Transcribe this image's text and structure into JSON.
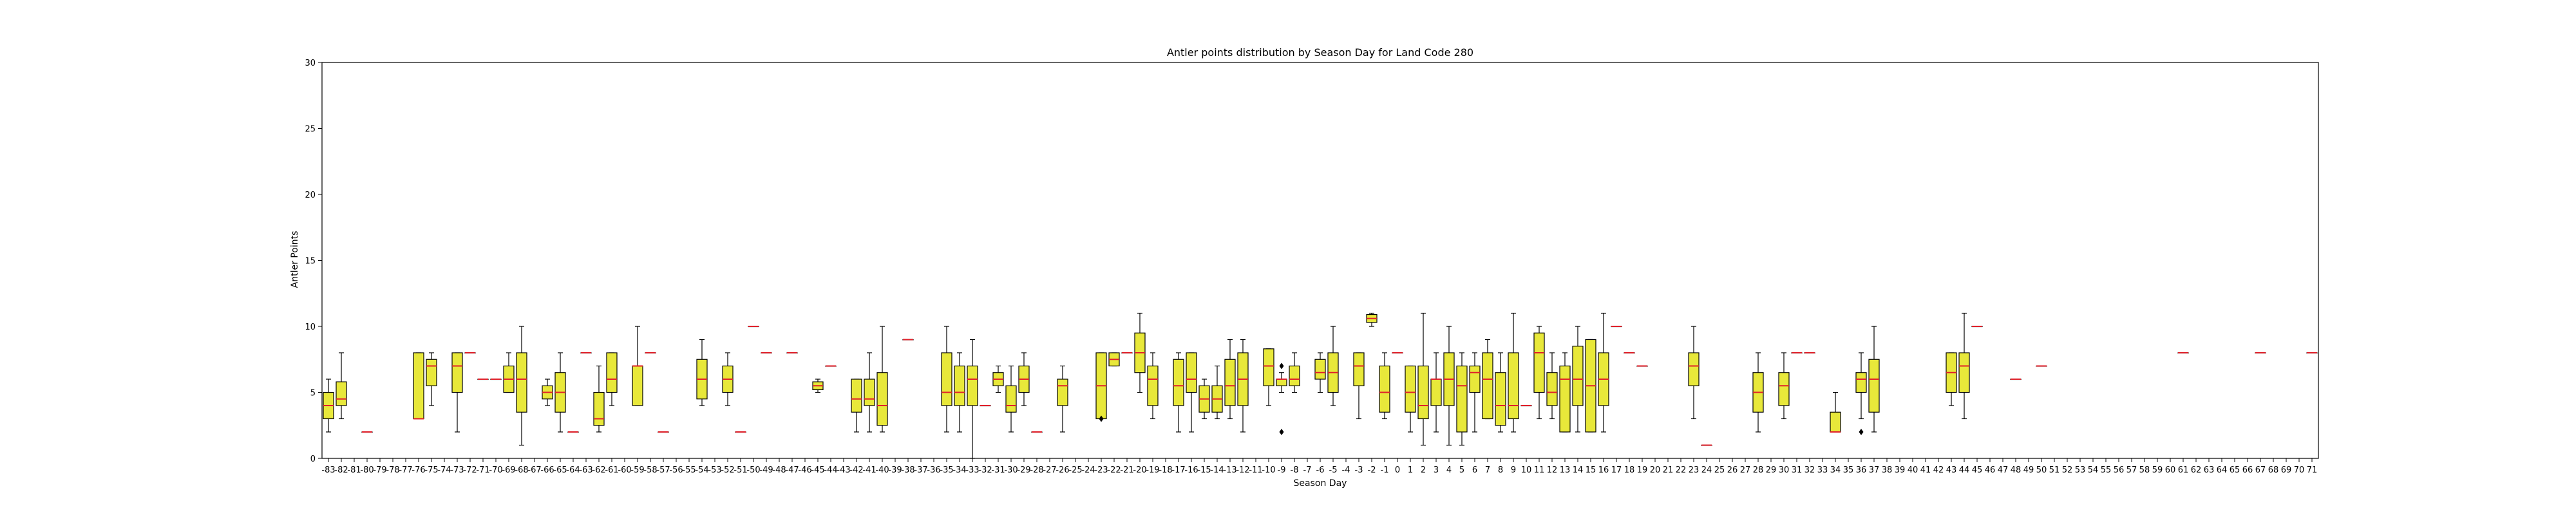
{
  "chart_data": {
    "type": "box",
    "title": "Antler points distribution by Season Day for Land Code 280",
    "xlabel": "Season Day",
    "ylabel": "Antler Points",
    "ylim": [
      0,
      30
    ],
    "yticks": [
      0,
      5,
      10,
      15,
      20,
      25,
      30
    ],
    "xlim": [
      -83.5,
      71.5
    ],
    "x_categories": [
      -83,
      -82,
      -81,
      -80,
      -79,
      -78,
      -77,
      -76,
      -75,
      -74,
      -73,
      -72,
      -71,
      -70,
      -69,
      -68,
      -67,
      -66,
      -65,
      -64,
      -63,
      -62,
      -61,
      -60,
      -59,
      -58,
      -57,
      -56,
      -55,
      -54,
      -53,
      -52,
      -51,
      -50,
      -49,
      -48,
      -47,
      -46,
      -45,
      -44,
      -43,
      -42,
      -41,
      -40,
      -39,
      -38,
      -37,
      -36,
      -35,
      -34,
      -33,
      -32,
      -31,
      -30,
      -29,
      -28,
      -27,
      -26,
      -25,
      -24,
      -23,
      -22,
      -21,
      -20,
      -19,
      -18,
      -17,
      -16,
      -15,
      -14,
      -13,
      -12,
      -11,
      -10,
      -9,
      -8,
      -7,
      -6,
      -5,
      -4,
      -3,
      -2,
      -1,
      0,
      1,
      2,
      3,
      4,
      5,
      6,
      7,
      8,
      9,
      10,
      11,
      12,
      13,
      14,
      15,
      16,
      17,
      18,
      19,
      20,
      21,
      22,
      23,
      24,
      25,
      26,
      27,
      28,
      29,
      30,
      31,
      32,
      33,
      34,
      35,
      36,
      37,
      38,
      39,
      40,
      41,
      42,
      43,
      44,
      45,
      46,
      47,
      48,
      49,
      50,
      51,
      52,
      53,
      54,
      55,
      56,
      57,
      58,
      59,
      60,
      61,
      62,
      63,
      64,
      65,
      66,
      67,
      68,
      69,
      70,
      71
    ],
    "box_color": "#e8e83a",
    "median_color": "#e0202a",
    "boxes": [
      {
        "x": -83,
        "whislo": 2,
        "q1": 3,
        "med": 4,
        "q3": 5,
        "whishi": 6
      },
      {
        "x": -82,
        "whislo": 3,
        "q1": 4,
        "med": 4.5,
        "q3": 5.8,
        "whishi": 8
      },
      {
        "x": -80,
        "whislo": 2,
        "q1": 2,
        "med": 2,
        "q3": 2,
        "whishi": 2
      },
      {
        "x": -76,
        "whislo": 3,
        "q1": 3,
        "med": 3,
        "q3": 8,
        "whishi": 8
      },
      {
        "x": -75,
        "whislo": 4,
        "q1": 5.5,
        "med": 7,
        "q3": 7.5,
        "whishi": 8
      },
      {
        "x": -73,
        "whislo": 2,
        "q1": 5,
        "med": 7,
        "q3": 8,
        "whishi": 8
      },
      {
        "x": -72,
        "whislo": 8,
        "q1": 8,
        "med": 8,
        "q3": 8,
        "whishi": 8
      },
      {
        "x": -71,
        "whislo": 6,
        "q1": 6,
        "med": 6,
        "q3": 6,
        "whishi": 6
      },
      {
        "x": -70,
        "whislo": 6,
        "q1": 6,
        "med": 6,
        "q3": 6,
        "whishi": 6
      },
      {
        "x": -69,
        "whislo": 5,
        "q1": 5,
        "med": 6,
        "q3": 7,
        "whishi": 8
      },
      {
        "x": -68,
        "whislo": 1,
        "q1": 3.5,
        "med": 6,
        "q3": 8,
        "whishi": 10
      },
      {
        "x": -66,
        "whislo": 4,
        "q1": 4.5,
        "med": 5,
        "q3": 5.5,
        "whishi": 6
      },
      {
        "x": -65,
        "whislo": 2,
        "q1": 3.5,
        "med": 5,
        "q3": 6.5,
        "whishi": 8
      },
      {
        "x": -64,
        "whislo": 2,
        "q1": 2,
        "med": 2,
        "q3": 2,
        "whishi": 2
      },
      {
        "x": -63,
        "whislo": 8,
        "q1": 8,
        "med": 8,
        "q3": 8,
        "whishi": 8
      },
      {
        "x": -62,
        "whislo": 2,
        "q1": 2.5,
        "med": 3,
        "q3": 5,
        "whishi": 7
      },
      {
        "x": -61,
        "whislo": 4,
        "q1": 5,
        "med": 6,
        "q3": 8,
        "whishi": 8
      },
      {
        "x": -59,
        "whislo": 4,
        "q1": 4,
        "med": 7,
        "q3": 7,
        "whishi": 10
      },
      {
        "x": -58,
        "whislo": 8,
        "q1": 8,
        "med": 8,
        "q3": 8,
        "whishi": 8
      },
      {
        "x": -57,
        "whislo": 2,
        "q1": 2,
        "med": 2,
        "q3": 2,
        "whishi": 2
      },
      {
        "x": -54,
        "whislo": 4,
        "q1": 4.5,
        "med": 6,
        "q3": 7.5,
        "whishi": 9
      },
      {
        "x": -52,
        "whislo": 4,
        "q1": 5,
        "med": 6,
        "q3": 7,
        "whishi": 8
      },
      {
        "x": -51,
        "whislo": 2,
        "q1": 2,
        "med": 2,
        "q3": 2,
        "whishi": 2
      },
      {
        "x": -50,
        "whislo": 10,
        "q1": 10,
        "med": 10,
        "q3": 10,
        "whishi": 10
      },
      {
        "x": -49,
        "whislo": 8,
        "q1": 8,
        "med": 8,
        "q3": 8,
        "whishi": 8
      },
      {
        "x": -47,
        "whislo": 8,
        "q1": 8,
        "med": 8,
        "q3": 8,
        "whishi": 8
      },
      {
        "x": -45,
        "whislo": 5,
        "q1": 5.2,
        "med": 5.5,
        "q3": 5.8,
        "whishi": 6
      },
      {
        "x": -44,
        "whislo": 7,
        "q1": 7,
        "med": 7,
        "q3": 7,
        "whishi": 7
      },
      {
        "x": -42,
        "whislo": 2,
        "q1": 3.5,
        "med": 4.5,
        "q3": 6,
        "whishi": 6
      },
      {
        "x": -41,
        "whislo": 2,
        "q1": 4,
        "med": 4.5,
        "q3": 6,
        "whishi": 8
      },
      {
        "x": -40,
        "whislo": 2,
        "q1": 2.5,
        "med": 4,
        "q3": 6.5,
        "whishi": 10
      },
      {
        "x": -38,
        "whislo": 9,
        "q1": 9,
        "med": 9,
        "q3": 9,
        "whishi": 9
      },
      {
        "x": -35,
        "whislo": 2,
        "q1": 4,
        "med": 5,
        "q3": 8,
        "whishi": 10
      },
      {
        "x": -34,
        "whislo": 2,
        "q1": 4,
        "med": 5,
        "q3": 7,
        "whishi": 8
      },
      {
        "x": -33,
        "whislo": 0,
        "q1": 4,
        "med": 6,
        "q3": 7,
        "whishi": 9
      },
      {
        "x": -32,
        "whislo": 4,
        "q1": 4,
        "med": 4,
        "q3": 4,
        "whishi": 4
      },
      {
        "x": -31,
        "whislo": 5,
        "q1": 5.5,
        "med": 6,
        "q3": 6.5,
        "whishi": 7
      },
      {
        "x": -30,
        "whislo": 2,
        "q1": 3.5,
        "med": 4,
        "q3": 5.5,
        "whishi": 7
      },
      {
        "x": -29,
        "whislo": 4,
        "q1": 5,
        "med": 6,
        "q3": 7,
        "whishi": 8
      },
      {
        "x": -28,
        "whislo": 2,
        "q1": 2,
        "med": 2,
        "q3": 2,
        "whishi": 2
      },
      {
        "x": -26,
        "whislo": 2,
        "q1": 4,
        "med": 5.5,
        "q3": 6,
        "whishi": 7
      },
      {
        "x": -23,
        "whislo": 3,
        "q1": 3,
        "med": 5.5,
        "q3": 8,
        "whishi": 8,
        "fliers": [
          3
        ]
      },
      {
        "x": -22,
        "whislo": 7,
        "q1": 7,
        "med": 7.5,
        "q3": 8,
        "whishi": 8
      },
      {
        "x": -21,
        "whislo": 8,
        "q1": 8,
        "med": 8,
        "q3": 8,
        "whishi": 8
      },
      {
        "x": -20,
        "whislo": 5,
        "q1": 6.5,
        "med": 8,
        "q3": 9.5,
        "whishi": 11
      },
      {
        "x": -19,
        "whislo": 3,
        "q1": 4,
        "med": 6,
        "q3": 7,
        "whishi": 8
      },
      {
        "x": -17,
        "whislo": 2,
        "q1": 4,
        "med": 5.5,
        "q3": 7.5,
        "whishi": 8
      },
      {
        "x": -16,
        "whislo": 2,
        "q1": 5,
        "med": 6,
        "q3": 8,
        "whishi": 8
      },
      {
        "x": -15,
        "whislo": 3,
        "q1": 3.5,
        "med": 4.5,
        "q3": 5.5,
        "whishi": 6
      },
      {
        "x": -14,
        "whislo": 3,
        "q1": 3.5,
        "med": 4.5,
        "q3": 5.5,
        "whishi": 7
      },
      {
        "x": -13,
        "whislo": 3,
        "q1": 4,
        "med": 5.5,
        "q3": 7.5,
        "whishi": 9
      },
      {
        "x": -12,
        "whislo": 2,
        "q1": 4,
        "med": 6,
        "q3": 8,
        "whishi": 9
      },
      {
        "x": -10,
        "whislo": 4,
        "q1": 5.5,
        "med": 7,
        "q3": 8.3,
        "whishi": 8.3
      },
      {
        "x": -9,
        "whislo": 5,
        "q1": 5.5,
        "med": 6,
        "q3": 6,
        "whishi": 6.5,
        "fliers": [
          2,
          7
        ]
      },
      {
        "x": -8,
        "whislo": 5,
        "q1": 5.5,
        "med": 6,
        "q3": 7,
        "whishi": 8
      },
      {
        "x": -6,
        "whislo": 5,
        "q1": 6,
        "med": 6.5,
        "q3": 7.5,
        "whishi": 8
      },
      {
        "x": -5,
        "whislo": 4,
        "q1": 5,
        "med": 6.5,
        "q3": 8,
        "whishi": 10
      },
      {
        "x": -3,
        "whislo": 3,
        "q1": 5.5,
        "med": 7,
        "q3": 8,
        "whishi": 8
      },
      {
        "x": -2,
        "whislo": 10,
        "q1": 10.3,
        "med": 10.6,
        "q3": 10.9,
        "whishi": 11
      },
      {
        "x": -1,
        "whislo": 3,
        "q1": 3.5,
        "med": 5,
        "q3": 7,
        "whishi": 8
      },
      {
        "x": 0,
        "whislo": 8,
        "q1": 8,
        "med": 8,
        "q3": 8,
        "whishi": 8
      },
      {
        "x": 1,
        "whislo": 2,
        "q1": 3.5,
        "med": 5,
        "q3": 7,
        "whishi": 7
      },
      {
        "x": 2,
        "whislo": 1,
        "q1": 3,
        "med": 4,
        "q3": 7,
        "whishi": 11
      },
      {
        "x": 3,
        "whislo": 2,
        "q1": 4,
        "med": 6,
        "q3": 6,
        "whishi": 8
      },
      {
        "x": 4,
        "whislo": 1,
        "q1": 4,
        "med": 6,
        "q3": 8,
        "whishi": 10
      },
      {
        "x": 5,
        "whislo": 1,
        "q1": 2,
        "med": 5.5,
        "q3": 7,
        "whishi": 8
      },
      {
        "x": 6,
        "whislo": 2,
        "q1": 5,
        "med": 6.5,
        "q3": 7,
        "whishi": 8
      },
      {
        "x": 7,
        "whislo": 3,
        "q1": 3,
        "med": 6,
        "q3": 8,
        "whishi": 9
      },
      {
        "x": 8,
        "whislo": 2,
        "q1": 2.5,
        "med": 4,
        "q3": 6.5,
        "whishi": 8
      },
      {
        "x": 9,
        "whislo": 2,
        "q1": 3,
        "med": 4,
        "q3": 8,
        "whishi": 11
      },
      {
        "x": 10,
        "whislo": 4,
        "q1": 4,
        "med": 4,
        "q3": 4,
        "whishi": 4
      },
      {
        "x": 11,
        "whislo": 3,
        "q1": 5,
        "med": 8,
        "q3": 9.5,
        "whishi": 10
      },
      {
        "x": 12,
        "whislo": 3,
        "q1": 4,
        "med": 5,
        "q3": 6.5,
        "whishi": 8
      },
      {
        "x": 13,
        "whislo": 2,
        "q1": 2,
        "med": 6,
        "q3": 7,
        "whishi": 8
      },
      {
        "x": 14,
        "whislo": 2,
        "q1": 4,
        "med": 6,
        "q3": 8.5,
        "whishi": 10
      },
      {
        "x": 15,
        "whislo": 2,
        "q1": 2,
        "med": 5.5,
        "q3": 9,
        "whishi": 9
      },
      {
        "x": 16,
        "whislo": 2,
        "q1": 4,
        "med": 6,
        "q3": 8,
        "whishi": 11
      },
      {
        "x": 17,
        "whislo": 10,
        "q1": 10,
        "med": 10,
        "q3": 10,
        "whishi": 10
      },
      {
        "x": 18,
        "whislo": 8,
        "q1": 8,
        "med": 8,
        "q3": 8,
        "whishi": 8
      },
      {
        "x": 19,
        "whislo": 7,
        "q1": 7,
        "med": 7,
        "q3": 7,
        "whishi": 7
      },
      {
        "x": 23,
        "whislo": 3,
        "q1": 5.5,
        "med": 7,
        "q3": 8,
        "whishi": 10
      },
      {
        "x": 24,
        "whislo": 1,
        "q1": 1,
        "med": 1,
        "q3": 1,
        "whishi": 1
      },
      {
        "x": 28,
        "whislo": 2,
        "q1": 3.5,
        "med": 5,
        "q3": 6.5,
        "whishi": 8
      },
      {
        "x": 30,
        "whislo": 3,
        "q1": 4,
        "med": 5.5,
        "q3": 6.5,
        "whishi": 8
      },
      {
        "x": 31,
        "whislo": 8,
        "q1": 8,
        "med": 8,
        "q3": 8,
        "whishi": 8
      },
      {
        "x": 32,
        "whislo": 8,
        "q1": 8,
        "med": 8,
        "q3": 8,
        "whishi": 8
      },
      {
        "x": 34,
        "whislo": 2,
        "q1": 2,
        "med": 2,
        "q3": 3.5,
        "whishi": 5
      },
      {
        "x": 36,
        "whislo": 3,
        "q1": 5,
        "med": 6,
        "q3": 6.5,
        "whishi": 8,
        "fliers": [
          2
        ]
      },
      {
        "x": 37,
        "whislo": 2,
        "q1": 3.5,
        "med": 6,
        "q3": 7.5,
        "whishi": 10
      },
      {
        "x": 43,
        "whislo": 4,
        "q1": 5,
        "med": 6.5,
        "q3": 8,
        "whishi": 8
      },
      {
        "x": 44,
        "whislo": 3,
        "q1": 5,
        "med": 7,
        "q3": 8,
        "whishi": 11
      },
      {
        "x": 45,
        "whislo": 10,
        "q1": 10,
        "med": 10,
        "q3": 10,
        "whishi": 10
      },
      {
        "x": 48,
        "whislo": 6,
        "q1": 6,
        "med": 6,
        "q3": 6,
        "whishi": 6
      },
      {
        "x": 50,
        "whislo": 7,
        "q1": 7,
        "med": 7,
        "q3": 7,
        "whishi": 7
      },
      {
        "x": 61,
        "whislo": 8,
        "q1": 8,
        "med": 8,
        "q3": 8,
        "whishi": 8
      },
      {
        "x": 67,
        "whislo": 8,
        "q1": 8,
        "med": 8,
        "q3": 8,
        "whishi": 8
      },
      {
        "x": 71,
        "whislo": 8,
        "q1": 8,
        "med": 8,
        "q3": 8,
        "whishi": 8
      }
    ]
  }
}
